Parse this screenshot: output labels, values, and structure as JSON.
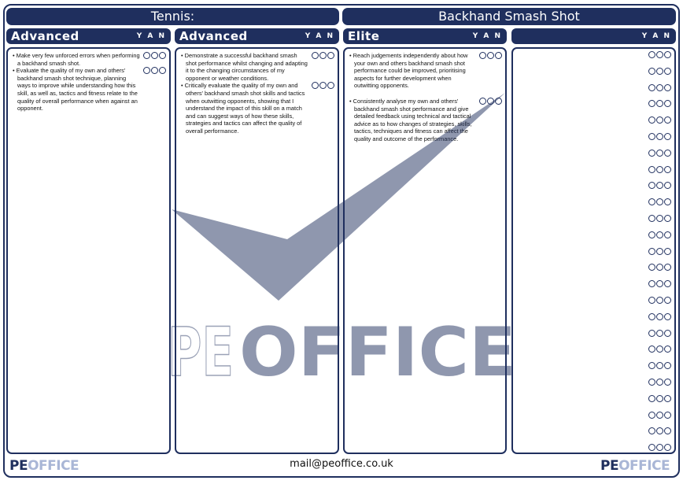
{
  "header": {
    "left_title": "Tennis:",
    "right_title": "Backhand Smash Shot"
  },
  "yan_label": "Y A N",
  "columns": [
    {
      "level": "Advanced",
      "items": [
        {
          "text": "Make very few unforced errors when performing a backhand smash shot."
        },
        {
          "text": "Evaluate the quality of my own and others' backhand smash shot technique, planning ways to improve while understanding how this skill, as well as, tactics and fitness relate to the quality of overall performance when against an opponent."
        }
      ]
    },
    {
      "level": "Advanced",
      "items": [
        {
          "text": "Demonstrate a successful backhand smash shot performance whilst changing and adapting it to the changing circumstances of my opponent or weather conditions."
        },
        {
          "text": "Critically evaluate the quality of my own and others' backhand smash shot skills and tactics when outwitting opponents, showing that I understand the impact of this skill on a match and can suggest ways of how these skills, strategies and tactics can affect the quality of overall performance."
        }
      ]
    },
    {
      "level": "Elite",
      "items": [
        {
          "text": "Reach judgements independently about how your own and others backhand smash shot performance could be improved, prioritising aspects for further development when outwitting opponents."
        },
        {
          "text": "Consistently analyse my own and others' backhand smash shot performance and give detailed feedback using technical and tactical advice as to how changes of strategies, skills, tactics, techniques and fitness can affect the quality and outcome of the performance."
        }
      ]
    },
    {
      "level": "",
      "blank_rows": 25
    }
  ],
  "watermark": {
    "pe": "PE",
    "office": "OFFICE"
  },
  "footer": {
    "email": "mail@peoffice.co.uk",
    "logo_pe": "PE",
    "logo_office": "OFFICE"
  },
  "colors": {
    "navy": "#1f2f5e",
    "light": "#a9b6d6"
  }
}
